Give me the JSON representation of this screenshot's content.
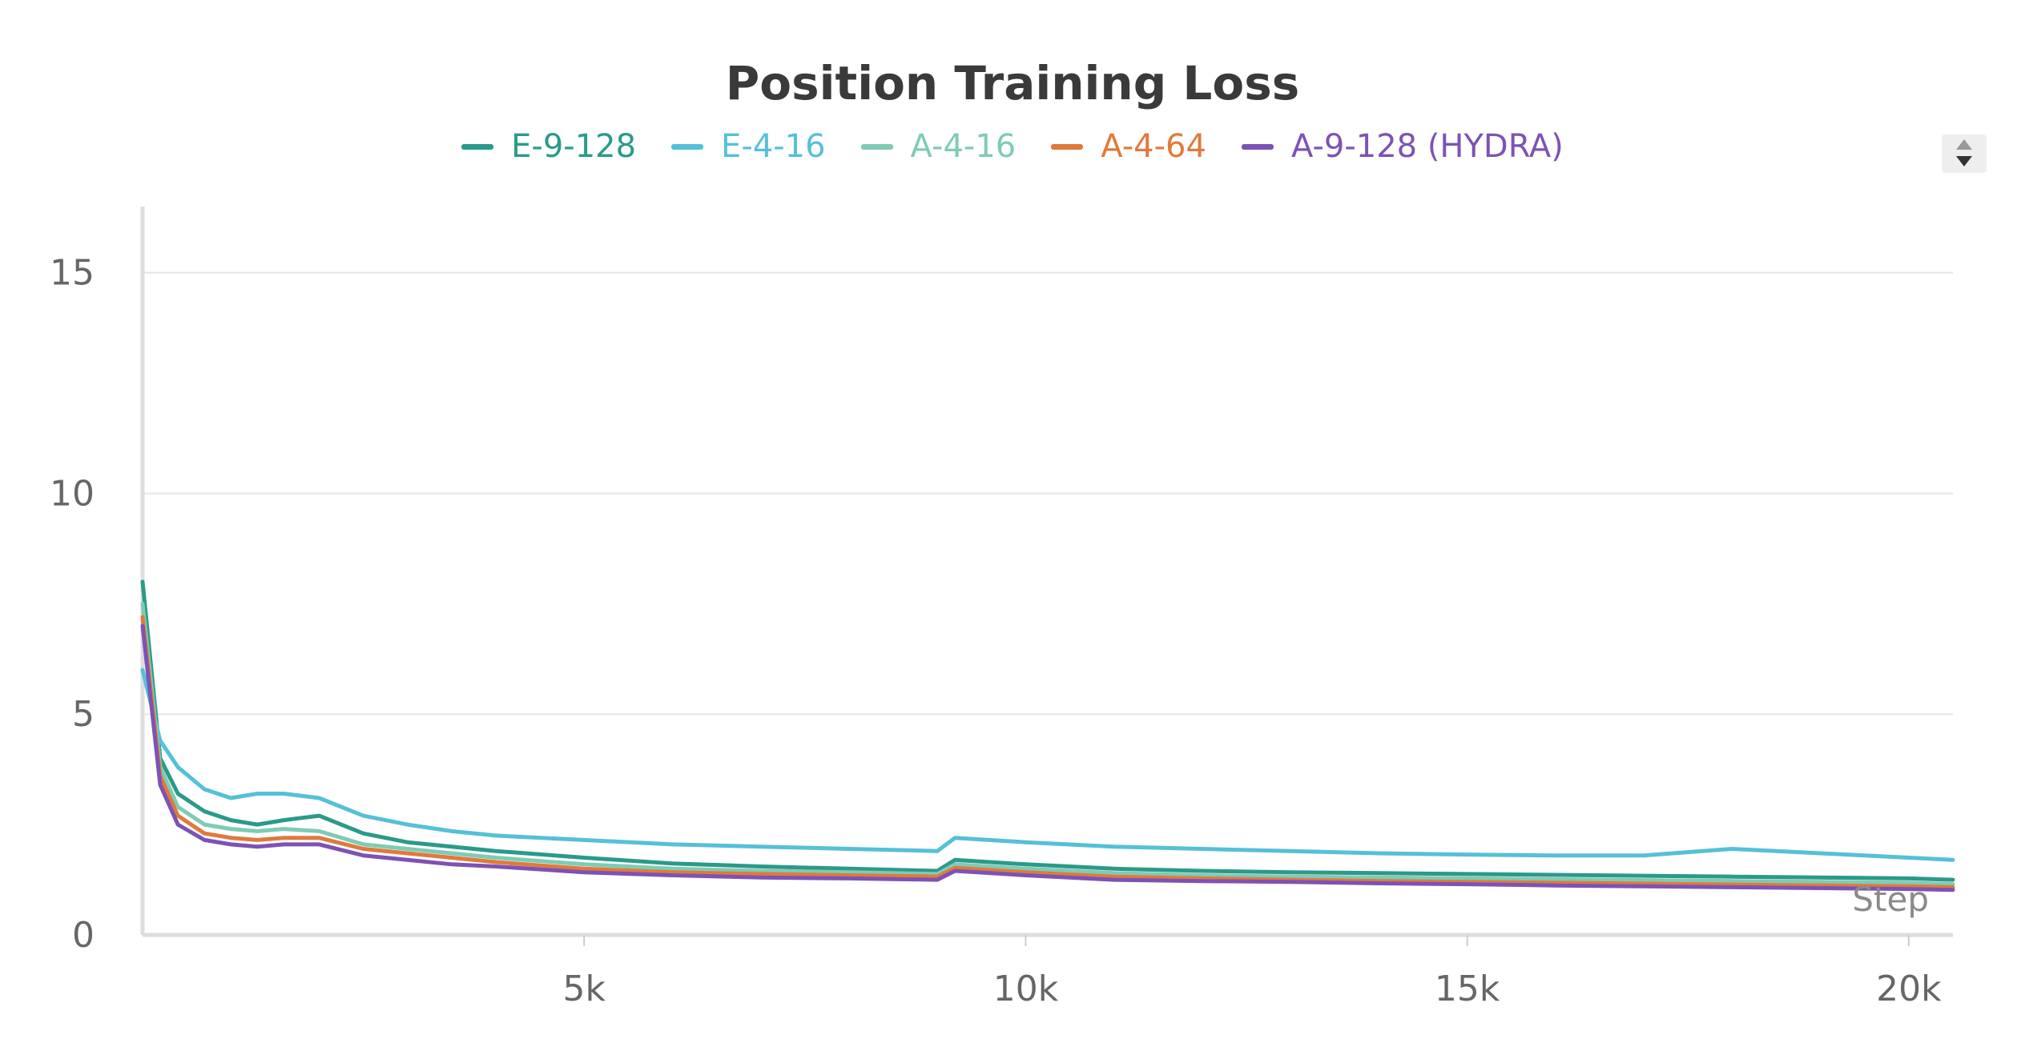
{
  "chart_data": {
    "type": "line",
    "title": "Position Training Loss",
    "xlabel": "Step",
    "ylabel": "",
    "xlim": [
      0,
      20500
    ],
    "ylim": [
      0,
      16.5
    ],
    "xticks": [
      5000,
      10000,
      15000,
      20000
    ],
    "xtick_labels": [
      "5k",
      "10k",
      "15k",
      "20k"
    ],
    "yticks": [
      0,
      5,
      10,
      15
    ],
    "ytick_labels": [
      "0",
      "5",
      "10",
      "15"
    ],
    "grid": true,
    "legend_position": "top-center",
    "series": [
      {
        "name": "E-9-128",
        "color": "#2a9a8a",
        "x": [
          0,
          200,
          400,
          700,
          1000,
          1300,
          1600,
          2000,
          2500,
          3000,
          3500,
          4000,
          5000,
          6000,
          7000,
          8000,
          9000,
          9200,
          10000,
          11000,
          12000,
          13000,
          14000,
          15000,
          16000,
          17000,
          18000,
          19000,
          20000,
          20500
        ],
        "y": [
          8.0,
          4.0,
          3.2,
          2.8,
          2.6,
          2.5,
          2.6,
          2.7,
          2.3,
          2.1,
          2.0,
          1.9,
          1.75,
          1.62,
          1.55,
          1.5,
          1.45,
          1.7,
          1.6,
          1.5,
          1.45,
          1.42,
          1.4,
          1.38,
          1.36,
          1.34,
          1.32,
          1.3,
          1.28,
          1.25
        ]
      },
      {
        "name": "E-4-16",
        "color": "#55c0d8",
        "x": [
          0,
          200,
          400,
          700,
          1000,
          1300,
          1600,
          2000,
          2500,
          3000,
          3500,
          4000,
          5000,
          6000,
          7000,
          8000,
          9000,
          9200,
          10000,
          11000,
          12000,
          13000,
          14000,
          15000,
          16000,
          17000,
          18000,
          19000,
          20000,
          20500
        ],
        "y": [
          6.0,
          4.4,
          3.8,
          3.3,
          3.1,
          3.2,
          3.2,
          3.1,
          2.7,
          2.5,
          2.35,
          2.25,
          2.15,
          2.05,
          2.0,
          1.95,
          1.9,
          2.2,
          2.1,
          2.0,
          1.95,
          1.9,
          1.85,
          1.82,
          1.8,
          1.8,
          1.95,
          1.85,
          1.75,
          1.7
        ]
      },
      {
        "name": "A-4-16",
        "color": "#7fcbb5",
        "x": [
          0,
          200,
          400,
          700,
          1000,
          1300,
          1600,
          2000,
          2500,
          3000,
          3500,
          4000,
          5000,
          6000,
          7000,
          8000,
          9000,
          9200,
          10000,
          11000,
          12000,
          13000,
          14000,
          15000,
          16000,
          17000,
          18000,
          19000,
          20000,
          20500
        ],
        "y": [
          7.5,
          3.8,
          2.9,
          2.5,
          2.4,
          2.35,
          2.4,
          2.35,
          2.05,
          1.95,
          1.85,
          1.75,
          1.6,
          1.5,
          1.45,
          1.42,
          1.38,
          1.6,
          1.5,
          1.4,
          1.35,
          1.32,
          1.3,
          1.28,
          1.26,
          1.24,
          1.22,
          1.2,
          1.18,
          1.15
        ]
      },
      {
        "name": "A-4-64",
        "color": "#e07a3a",
        "x": [
          0,
          200,
          400,
          700,
          1000,
          1300,
          1600,
          2000,
          2500,
          3000,
          3500,
          4000,
          5000,
          6000,
          7000,
          8000,
          9000,
          9200,
          10000,
          11000,
          12000,
          13000,
          14000,
          15000,
          16000,
          17000,
          18000,
          19000,
          20000,
          20500
        ],
        "y": [
          7.2,
          3.6,
          2.7,
          2.3,
          2.2,
          2.15,
          2.2,
          2.2,
          1.95,
          1.85,
          1.75,
          1.65,
          1.5,
          1.42,
          1.38,
          1.35,
          1.32,
          1.52,
          1.42,
          1.32,
          1.28,
          1.25,
          1.22,
          1.2,
          1.18,
          1.16,
          1.14,
          1.12,
          1.1,
          1.08
        ]
      },
      {
        "name": "A-9-128 (HYDRA)",
        "color": "#7d52b5",
        "x": [
          0,
          200,
          400,
          700,
          1000,
          1300,
          1600,
          2000,
          2500,
          3000,
          3500,
          4000,
          5000,
          6000,
          7000,
          8000,
          9000,
          9200,
          10000,
          11000,
          12000,
          13000,
          14000,
          15000,
          16000,
          17000,
          18000,
          19000,
          20000,
          20500
        ],
        "y": [
          7.0,
          3.4,
          2.5,
          2.15,
          2.05,
          2.0,
          2.05,
          2.05,
          1.8,
          1.7,
          1.6,
          1.55,
          1.42,
          1.35,
          1.3,
          1.28,
          1.25,
          1.45,
          1.35,
          1.25,
          1.22,
          1.2,
          1.17,
          1.15,
          1.12,
          1.1,
          1.08,
          1.06,
          1.04,
          1.02
        ]
      }
    ]
  }
}
